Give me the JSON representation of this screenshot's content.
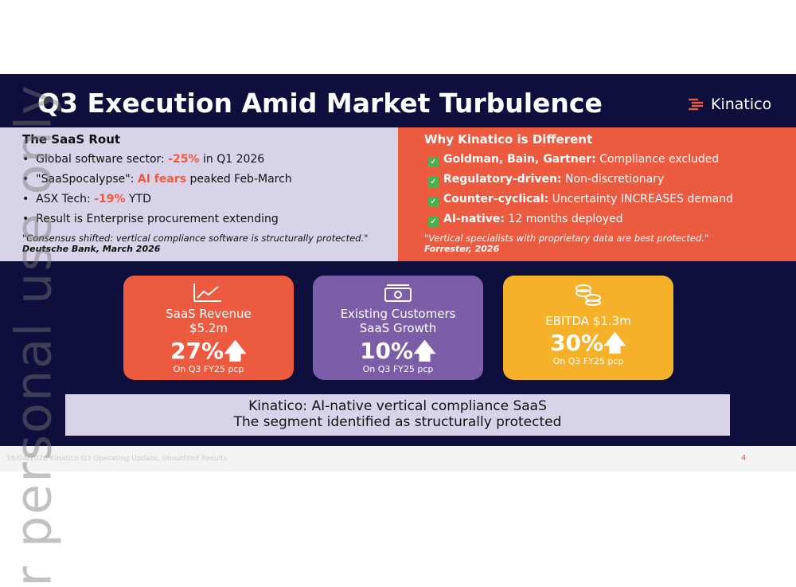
{
  "slide": {
    "title": "Q3 Execution Amid Market Turbulence",
    "logo": "Kinatico",
    "left": {
      "heading": "The SaaS Rout",
      "bullets": [
        [
          "Global software sector: ",
          "-25%",
          " in Q1 2026"
        ],
        [
          "\"SaaSpocalypse\": ",
          "AI fears",
          " peaked Feb-March"
        ],
        [
          "ASX Tech: ",
          "-19%",
          " YTD"
        ],
        [
          "Result is Enterprise procurement extending"
        ]
      ],
      "quote": "\"Consensus shifted: vertical compliance software is structurally protected.\"",
      "source": "Deutsche Bank, March 2026"
    },
    "right": {
      "heading": "Why Kinatico is Different",
      "items": [
        [
          "Goldman, Bain, Gartner:",
          " Compliance excluded"
        ],
        [
          "Regulatory-driven:",
          " Non-discretionary"
        ],
        [
          "Counter-cyclical:",
          " Uncertainty INCREASES demand"
        ],
        [
          "AI-native:",
          " 12 months deployed"
        ]
      ],
      "quote": "\"Vertical specialists with proprietary data are best protected.\"",
      "source": "Forrester, 2026"
    },
    "cards": [
      {
        "label": [
          "SaaS Revenue",
          "$5.2m"
        ],
        "value": "27%",
        "note": "On Q3 FY25 pcp"
      },
      {
        "label": [
          "Existing Customers",
          "SaaS Growth"
        ],
        "value": "10%",
        "note": "On Q3 FY25 pcp"
      },
      {
        "label": [
          "EBITDA $1.3m"
        ],
        "value": "30%",
        "note": "On Q3 FY25 pcp"
      }
    ],
    "summary": [
      "Kinatico: AI-native vertical compliance SaaS",
      "The segment identified as structurally protected"
    ],
    "footer": "16/04/2026 Kinatico Q3 Operating Update, Unaudited Results",
    "page": "4",
    "watermark": "r personal use only"
  }
}
